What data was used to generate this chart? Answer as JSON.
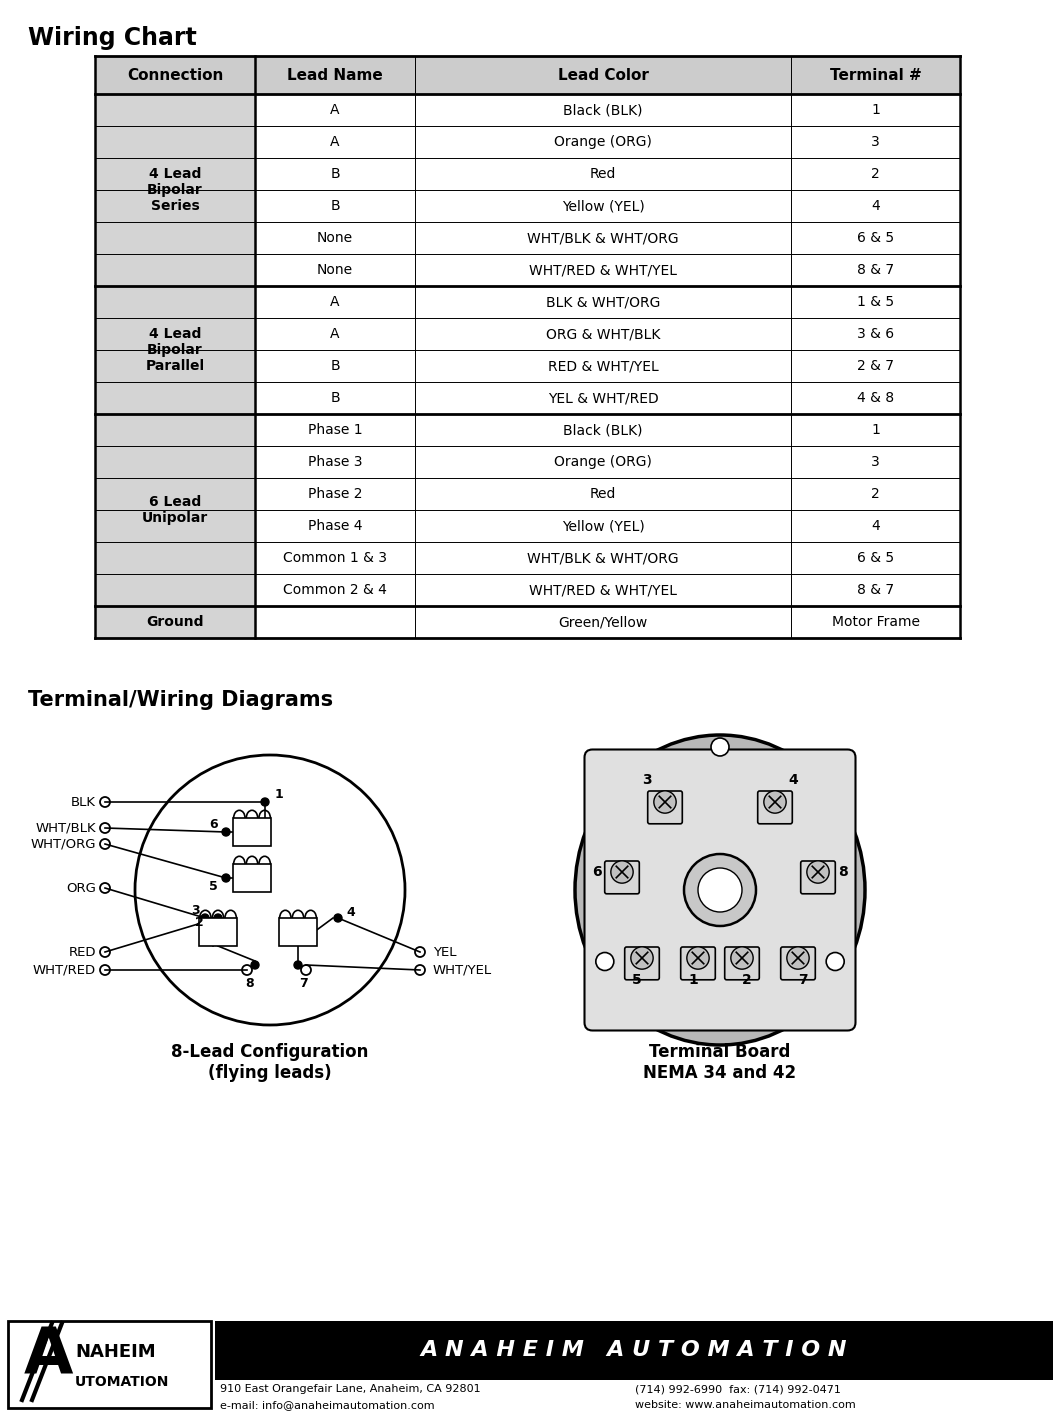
{
  "title_wiring": "Wiring Chart",
  "title_terminal": "Terminal/Wiring Diagrams",
  "table_headers": [
    "Connection",
    "Lead Name",
    "Lead Color",
    "Terminal #"
  ],
  "table_rows": [
    [
      "4 Lead\nBipolar\nSeries",
      "A",
      "Black (BLK)",
      "1"
    ],
    [
      "",
      "A",
      "Orange (ORG)",
      "3"
    ],
    [
      "",
      "B",
      "Red",
      "2"
    ],
    [
      "",
      "B",
      "Yellow (YEL)",
      "4"
    ],
    [
      "",
      "None",
      "WHT/BLK & WHT/ORG",
      "6 & 5"
    ],
    [
      "",
      "None",
      "WHT/RED & WHT/YEL",
      "8 & 7"
    ],
    [
      "4 Lead\nBipolar\nParallel",
      "A",
      "BLK & WHT/ORG",
      "1 & 5"
    ],
    [
      "",
      "A",
      "ORG & WHT/BLK",
      "3 & 6"
    ],
    [
      "",
      "B",
      "RED & WHT/YEL",
      "2 & 7"
    ],
    [
      "",
      "B",
      "YEL & WHT/RED",
      "4 & 8"
    ],
    [
      "6 Lead\nUnipolar",
      "Phase 1",
      "Black (BLK)",
      "1"
    ],
    [
      "",
      "Phase 3",
      "Orange (ORG)",
      "3"
    ],
    [
      "",
      "Phase 2",
      "Red",
      "2"
    ],
    [
      "",
      "Phase 4",
      "Yellow (YEL)",
      "4"
    ],
    [
      "",
      "Common 1 & 3",
      "WHT/BLK & WHT/ORG",
      "6 & 5"
    ],
    [
      "",
      "Common 2 & 4",
      "WHT/RED & WHT/YEL",
      "8 & 7"
    ],
    [
      "Ground",
      "",
      "Green/Yellow",
      "Motor Frame"
    ]
  ],
  "group_sizes": [
    6,
    4,
    6,
    1
  ],
  "group_labels": [
    "4 Lead\nBipolar\nSeries",
    "4 Lead\nBipolar\nParallel",
    "6 Lead\nUnipolar",
    "Ground"
  ],
  "col_ratios": [
    0.185,
    0.185,
    0.435,
    0.195
  ],
  "bg_header": "#cccccc",
  "bg_connection": "#d4d4d4",
  "bg_data": "#ffffff",
  "footer_text": "A N A H E I M   A U T O M A T I O N",
  "footer_sub1": "910 East Orangefair Lane, Anaheim, CA 92801",
  "footer_sub2": "e-mail: info@anaheimautomation.com",
  "footer_phone": "(714) 992-6990  fax: (714) 992-0471",
  "footer_web": "website: www.anaheimautomation.com",
  "caption_left": "8-Lead Configuration\n(flying leads)",
  "caption_right": "Terminal Board\nNEMA 34 and 42"
}
